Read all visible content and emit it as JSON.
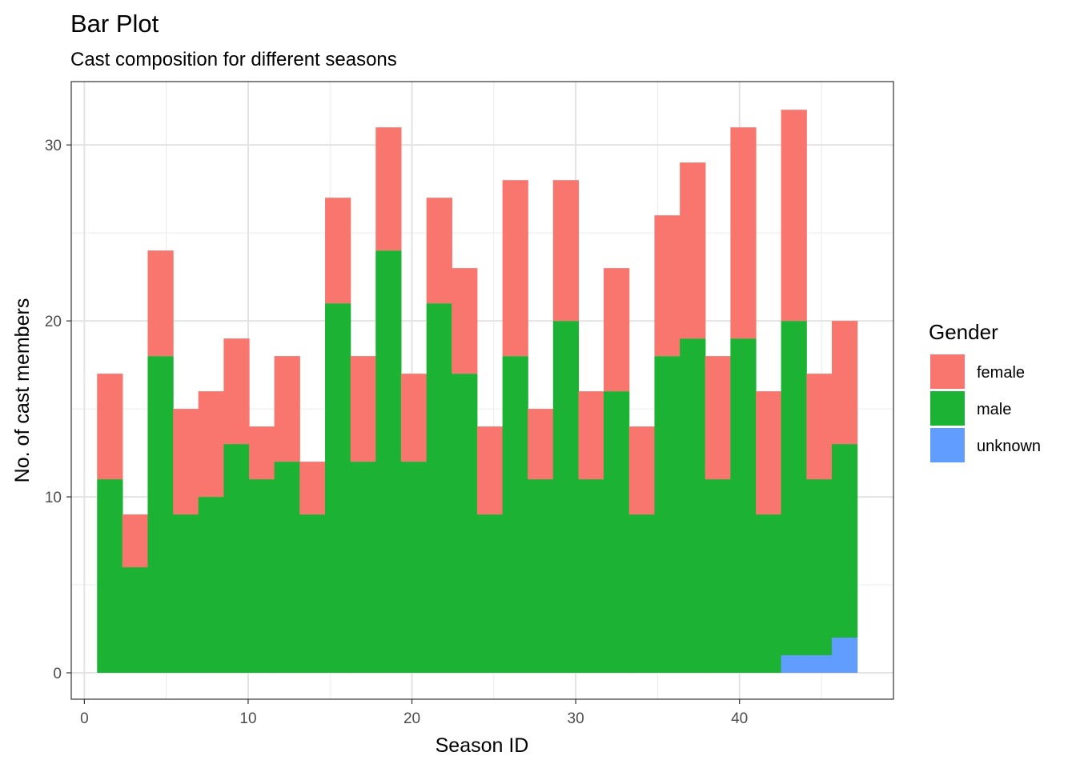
{
  "chart_data": {
    "type": "bar",
    "stacked": true,
    "title": "Bar Plot",
    "subtitle": "Cast composition for different seasons",
    "xlabel": "Season ID",
    "ylabel": "No. of cast members",
    "xlim": [
      -0.8,
      49.4
    ],
    "ylim": [
      -1.5,
      33.6
    ],
    "x_ticks": [
      0,
      10,
      20,
      30,
      40
    ],
    "y_ticks": [
      0,
      10,
      20,
      30
    ],
    "grid": true,
    "legend": {
      "title": "Gender",
      "position": "right",
      "items": [
        {
          "name": "female",
          "color": "#F8766D"
        },
        {
          "name": "male",
          "color": "#1CB234"
        },
        {
          "name": "unknown",
          "color": "#619CFF"
        }
      ]
    },
    "bin_width": 1.547,
    "bins": [
      {
        "x": 1.55,
        "unknown": 0,
        "male": 11,
        "female": 6
      },
      {
        "x": 3.09,
        "unknown": 0,
        "male": 6,
        "female": 3
      },
      {
        "x": 4.64,
        "unknown": 0,
        "male": 18,
        "female": 6
      },
      {
        "x": 6.19,
        "unknown": 0,
        "male": 9,
        "female": 6
      },
      {
        "x": 7.73,
        "unknown": 0,
        "male": 10,
        "female": 6
      },
      {
        "x": 9.28,
        "unknown": 0,
        "male": 13,
        "female": 6
      },
      {
        "x": 10.83,
        "unknown": 0,
        "male": 11,
        "female": 3
      },
      {
        "x": 12.37,
        "unknown": 0,
        "male": 12,
        "female": 6
      },
      {
        "x": 13.92,
        "unknown": 0,
        "male": 9,
        "female": 3
      },
      {
        "x": 15.47,
        "unknown": 0,
        "male": 21,
        "female": 6
      },
      {
        "x": 17.02,
        "unknown": 0,
        "male": 12,
        "female": 6
      },
      {
        "x": 18.56,
        "unknown": 0,
        "male": 24,
        "female": 7
      },
      {
        "x": 20.11,
        "unknown": 0,
        "male": 12,
        "female": 5
      },
      {
        "x": 21.66,
        "unknown": 0,
        "male": 21,
        "female": 6
      },
      {
        "x": 23.2,
        "unknown": 0,
        "male": 17,
        "female": 6
      },
      {
        "x": 24.75,
        "unknown": 0,
        "male": 9,
        "female": 5
      },
      {
        "x": 26.3,
        "unknown": 0,
        "male": 18,
        "female": 10
      },
      {
        "x": 27.84,
        "unknown": 0,
        "male": 11,
        "female": 4
      },
      {
        "x": 29.39,
        "unknown": 0,
        "male": 20,
        "female": 8
      },
      {
        "x": 30.94,
        "unknown": 0,
        "male": 11,
        "female": 5
      },
      {
        "x": 32.48,
        "unknown": 0,
        "male": 16,
        "female": 7
      },
      {
        "x": 34.03,
        "unknown": 0,
        "male": 9,
        "female": 5
      },
      {
        "x": 35.58,
        "unknown": 0,
        "male": 18,
        "female": 8
      },
      {
        "x": 37.13,
        "unknown": 0,
        "male": 19,
        "female": 10
      },
      {
        "x": 38.67,
        "unknown": 0,
        "male": 11,
        "female": 7
      },
      {
        "x": 40.22,
        "unknown": 0,
        "male": 19,
        "female": 12
      },
      {
        "x": 41.77,
        "unknown": 0,
        "male": 9,
        "female": 7
      },
      {
        "x": 43.31,
        "unknown": 1,
        "male": 19,
        "female": 12
      },
      {
        "x": 44.86,
        "unknown": 1,
        "male": 10,
        "female": 6
      },
      {
        "x": 46.41,
        "unknown": 2,
        "male": 11,
        "female": 7
      }
    ]
  }
}
